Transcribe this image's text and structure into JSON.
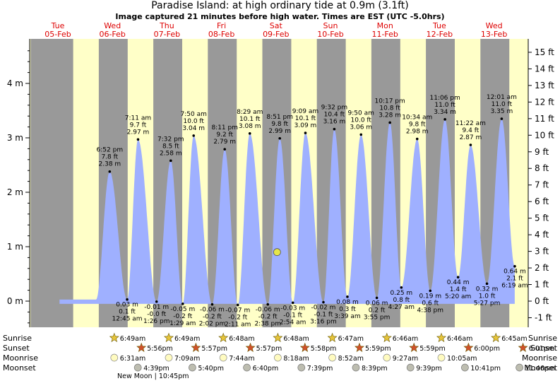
{
  "header": {
    "title": "Paradise Island: at high  ordinary tide at 0.9m (3.1ft)",
    "subtitle": "Image captured 21 minutes before high water. Times are EST (UTC -5.0hrs)"
  },
  "colors": {
    "day": "#ffffc8",
    "night": "#999999",
    "tide_fill": "#9fb0ff",
    "day_label": "#dd0000",
    "current_marker": "#e6e64a"
  },
  "chart_data": {
    "type": "area",
    "ylabel_left_unit": "m",
    "ylabel_right_unit": "ft",
    "ylim_m": [
      -0.45,
      4.85
    ],
    "yticks_m": [
      "0 m",
      "1 m",
      "2 m",
      "3 m",
      "4 m"
    ],
    "yticks_ft": [
      "-1 ft",
      "0 ft",
      "1 ft",
      "2 ft",
      "3 ft",
      "4 ft",
      "5 ft",
      "6 ft",
      "7 ft",
      "8 ft",
      "9 ft",
      "10 ft",
      "11 ft",
      "12 ft",
      "13 ft",
      "14 ft",
      "15 ft"
    ],
    "days": [
      {
        "dow": "Tue",
        "date": "05-Feb",
        "x": 0
      },
      {
        "dow": "Wed",
        "date": "06-Feb",
        "x": 1
      },
      {
        "dow": "Thu",
        "date": "07-Feb",
        "x": 2
      },
      {
        "dow": "Fri",
        "date": "08-Feb",
        "x": 3
      },
      {
        "dow": "Sat",
        "date": "09-Feb",
        "x": 4
      },
      {
        "dow": "Sun",
        "date": "10-Feb",
        "x": 5
      },
      {
        "dow": "Mon",
        "date": "11-Feb",
        "x": 6
      },
      {
        "dow": "Tue",
        "date": "12-Feb",
        "x": 7
      },
      {
        "dow": "Wed",
        "date": "13-Feb",
        "x": 8
      }
    ],
    "night_bands": [
      [
        -0.03,
        -0.28
      ],
      [
        0.75,
        0.72
      ],
      [
        1.75,
        1.72
      ],
      [
        2.75,
        2.72
      ],
      [
        3.75,
        3.72
      ],
      [
        4.75,
        4.72
      ],
      [
        5.75,
        5.72
      ],
      [
        6.75,
        6.72
      ],
      [
        7.75,
        7.72
      ]
    ],
    "tides": [
      {
        "type": "high",
        "day": 0.95,
        "time": "6:52 pm",
        "ft": "7.8 ft",
        "m": 2.38
      },
      {
        "type": "low",
        "day": 1.27,
        "time": "12:45 am",
        "ft": "0.1 ft",
        "m": 0.03
      },
      {
        "type": "high",
        "day": 1.47,
        "time": "7:11 am",
        "ft": "9.7 ft",
        "m": 2.97
      },
      {
        "type": "low",
        "day": 1.81,
        "time": "1:26 pm",
        "ft": "-0.0 ft",
        "m": -0.01
      },
      {
        "type": "high",
        "day": 2.07,
        "time": "7:32 pm",
        "ft": "8.5 ft",
        "m": 2.58
      },
      {
        "type": "low",
        "day": 2.29,
        "time": "1:29 am",
        "ft": "-0.2 ft",
        "m": -0.05
      },
      {
        "type": "high",
        "day": 2.49,
        "time": "7:50 am",
        "ft": "10.0 ft",
        "m": 3.04
      },
      {
        "type": "low",
        "day": 2.83,
        "time": "2:02 pm",
        "ft": "-0.2 ft",
        "m": -0.06
      },
      {
        "type": "high",
        "day": 3.06,
        "time": "8:11 pm",
        "ft": "9.2 ft",
        "m": 2.79
      },
      {
        "type": "low",
        "day": 3.3,
        "time": "2:11 am",
        "ft": "-0.2 ft",
        "m": -0.07
      },
      {
        "type": "high",
        "day": 3.52,
        "time": "8:29 am",
        "ft": "10.1 ft",
        "m": 3.08
      },
      {
        "type": "low",
        "day": 3.85,
        "time": "2:38 pm",
        "ft": "-0.2 ft",
        "m": -0.06
      },
      {
        "type": "high",
        "day": 4.07,
        "time": "8:51 pm",
        "ft": "9.8 ft",
        "m": 2.99
      },
      {
        "type": "low",
        "day": 4.31,
        "time": "2:54 am",
        "ft": "-0.1 ft",
        "m": -0.03
      },
      {
        "type": "high",
        "day": 4.54,
        "time": "9:09 am",
        "ft": "10.1 ft",
        "m": 3.09
      },
      {
        "type": "low",
        "day": 4.87,
        "time": "3:16 pm",
        "ft": "-0.1 ft",
        "m": -0.02
      },
      {
        "type": "high",
        "day": 5.07,
        "time": "9:32 pm",
        "ft": "10.4 ft",
        "m": 3.16
      },
      {
        "type": "low",
        "day": 5.31,
        "time": "3:39 am",
        "ft": "0.3 ft",
        "m": 0.08
      },
      {
        "type": "high",
        "day": 5.56,
        "time": "9:50 am",
        "ft": "10.0 ft",
        "m": 3.06
      },
      {
        "type": "low",
        "day": 5.85,
        "time": "3:55 pm",
        "ft": "0.2 ft",
        "m": 0.06
      },
      {
        "type": "high",
        "day": 6.09,
        "time": "10:17 pm",
        "ft": "10.8 ft",
        "m": 3.28
      },
      {
        "type": "low",
        "day": 6.3,
        "time": "4:27 am",
        "ft": "0.8 ft",
        "m": 0.25
      },
      {
        "type": "high",
        "day": 6.59,
        "time": "10:34 am",
        "ft": "9.8 ft",
        "m": 2.98
      },
      {
        "type": "low",
        "day": 6.83,
        "time": "4:38 pm",
        "ft": "0.6 ft",
        "m": 0.19
      },
      {
        "type": "high",
        "day": 7.1,
        "time": "11:06 pm",
        "ft": "11.0 ft",
        "m": 3.34
      },
      {
        "type": "low",
        "day": 7.34,
        "time": "5:20 am",
        "ft": "1.4 ft",
        "m": 0.44
      },
      {
        "type": "high",
        "day": 7.57,
        "time": "11:22 am",
        "ft": "9.4 ft",
        "m": 2.87
      },
      {
        "type": "low",
        "day": 7.87,
        "time": "5:27 pm",
        "ft": "1.0 ft",
        "m": 0.32
      },
      {
        "type": "high",
        "day": 8.14,
        "time": "12:01 am",
        "ft": "11.0 ft",
        "m": 3.35
      },
      {
        "type": "low",
        "day": 8.38,
        "time": "6:19 am",
        "ft": "2.1 ft",
        "m": 0.64
      }
    ],
    "current_tide_m": 0.9,
    "current_day": 4.02,
    "astro_labels": [
      "Sunrise",
      "Sunset",
      "Moonrise",
      "Moonset"
    ],
    "sunrise": [
      {
        "day": 1.5,
        "time": "6:49am"
      },
      {
        "day": 2.5,
        "time": "6:49am"
      },
      {
        "day": 3.5,
        "time": "6:48am"
      },
      {
        "day": 4.5,
        "time": "6:48am"
      },
      {
        "day": 5.5,
        "time": "6:47am"
      },
      {
        "day": 6.5,
        "time": "6:46am"
      },
      {
        "day": 7.5,
        "time": "6:46am"
      },
      {
        "day": 8.5,
        "time": "6:45am"
      }
    ],
    "sunset": [
      {
        "day": 1.0,
        "time": "5:56pm"
      },
      {
        "day": 2.0,
        "time": "5:57pm"
      },
      {
        "day": 3.0,
        "time": "5:57pm"
      },
      {
        "day": 4.0,
        "time": "5:58pm"
      },
      {
        "day": 5.0,
        "time": "5:59pm"
      },
      {
        "day": 6.0,
        "time": "5:59pm"
      },
      {
        "day": 7.0,
        "time": "6:00pm"
      },
      {
        "day": 8.0,
        "time": "6:01pm"
      }
    ],
    "moonrise": [
      {
        "day": 1.5,
        "time": "6:31am"
      },
      {
        "day": 2.5,
        "time": "7:09am"
      },
      {
        "day": 3.5,
        "time": "7:44am"
      },
      {
        "day": 4.5,
        "time": "8:18am"
      },
      {
        "day": 5.5,
        "time": "8:52am"
      },
      {
        "day": 6.5,
        "time": "9:27am"
      },
      {
        "day": 7.5,
        "time": "10:05am"
      }
    ],
    "moonset": [
      {
        "day": 1.0,
        "time": "4:39pm"
      },
      {
        "day": 2.0,
        "time": "5:40pm"
      },
      {
        "day": 3.0,
        "time": "6:40pm"
      },
      {
        "day": 4.0,
        "time": "7:39pm"
      },
      {
        "day": 5.0,
        "time": "8:39pm"
      },
      {
        "day": 6.0,
        "time": "9:39pm"
      },
      {
        "day": 7.0,
        "time": "10:41pm"
      },
      {
        "day": 8.0,
        "time": "11:46pm"
      }
    ],
    "moon_phase_note": "New Moon | 10:45pm"
  }
}
